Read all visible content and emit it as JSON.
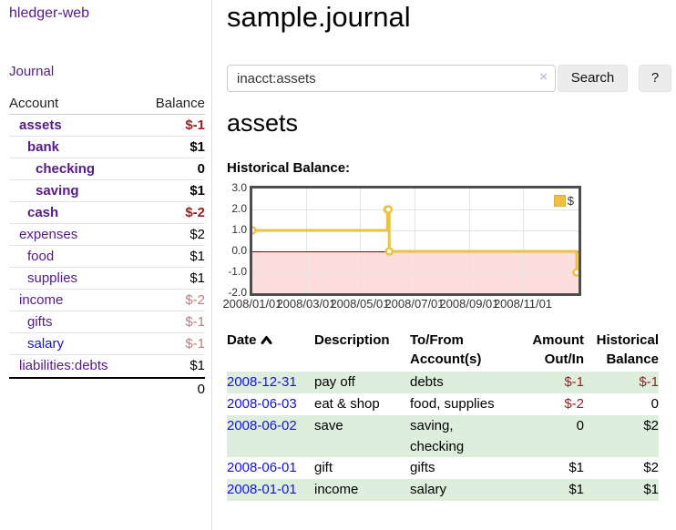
{
  "app": {
    "brand": "hledger-web"
  },
  "sidebar": {
    "journal_link": "Journal",
    "accounts": {
      "col_account": "Account",
      "col_balance": "Balance",
      "rows": [
        {
          "name": "assets",
          "balance": "$-1",
          "level": 0,
          "bold": true,
          "name_color": "purple",
          "balance_color": "negative"
        },
        {
          "name": "bank",
          "balance": "$1",
          "level": 1,
          "bold": true,
          "name_color": "purple",
          "balance_color": "normal"
        },
        {
          "name": "checking",
          "balance": "0",
          "level": 2,
          "bold": true,
          "name_color": "purple",
          "balance_color": "normal"
        },
        {
          "name": "saving",
          "balance": "$1",
          "level": 2,
          "bold": true,
          "name_color": "purple",
          "balance_color": "normal"
        },
        {
          "name": "cash",
          "balance": "$-2",
          "level": 1,
          "bold": true,
          "name_color": "purple",
          "balance_color": "negative"
        },
        {
          "name": "expenses",
          "balance": "$2",
          "level": 0,
          "bold": false,
          "name_color": "purple",
          "balance_color": "normal"
        },
        {
          "name": "food",
          "balance": "$1",
          "level": 1,
          "bold": false,
          "name_color": "purple",
          "balance_color": "normal"
        },
        {
          "name": "supplies",
          "balance": "$1",
          "level": 1,
          "bold": false,
          "name_color": "purple",
          "balance_color": "normal"
        },
        {
          "name": "income",
          "balance": "$-2",
          "level": 0,
          "bold": false,
          "name_color": "purple",
          "balance_color": "negative-muted"
        },
        {
          "name": "gifts",
          "balance": "$-1",
          "level": 1,
          "bold": false,
          "name_color": "purple",
          "balance_color": "negative-muted"
        },
        {
          "name": "salary",
          "balance": "$-1",
          "level": 1,
          "bold": false,
          "name_color": "blue",
          "balance_color": "negative-muted"
        },
        {
          "name": "liabilities:debts",
          "balance": "$1",
          "level": 0,
          "bold": false,
          "name_color": "purple",
          "balance_color": "normal"
        }
      ],
      "total": "0"
    }
  },
  "main": {
    "title": "sample.journal",
    "search": {
      "value": "inacct:assets",
      "clear_icon": "×",
      "button": "Search",
      "help_button": "?"
    },
    "account_heading": "assets",
    "chart_title": "Historical Balance:"
  },
  "chart_data": {
    "type": "line",
    "step": true,
    "title": "Historical Balance",
    "series": [
      {
        "name": "$",
        "color": "#edc240",
        "points": [
          {
            "date": "2008-01-01",
            "value": 1
          },
          {
            "date": "2008-06-01",
            "value": 2
          },
          {
            "date": "2008-06-02",
            "value": 2
          },
          {
            "date": "2008-06-03",
            "value": 0
          },
          {
            "date": "2008-12-31",
            "value": -1
          }
        ]
      }
    ],
    "ylim": [
      -2,
      3
    ],
    "yticks": [
      "3.0",
      "2.0",
      "1.0",
      "0.0",
      "-1.0",
      "-2.0"
    ],
    "xticks": [
      "2008/01/01",
      "2008/03/01",
      "2008/05/01",
      "2008/07/01",
      "2008/09/01",
      "2008/11/01"
    ],
    "legend": {
      "label": "$",
      "swatch_color": "#edc240",
      "position": "top-right"
    },
    "grid": true,
    "negative_region_color": "#fcdede",
    "zero_line_color": "#8b0000"
  },
  "register": {
    "headers": {
      "date": "Date",
      "sort_icon": "chevron-up",
      "description": "Description",
      "accounts": "To/From Account(s)",
      "amount": "Amount Out/In",
      "balance": "Historical Balance"
    },
    "rows": [
      {
        "date": "2008-12-31",
        "description": "pay off",
        "accounts": "debts",
        "amount": "$-1",
        "amount_color": "negative",
        "balance": "$-1",
        "balance_color": "negative",
        "highlight": true
      },
      {
        "date": "2008-06-03",
        "description": "eat & shop",
        "accounts": "food, supplies",
        "amount": "$-2",
        "amount_color": "negative",
        "balance": "0",
        "balance_color": "normal",
        "highlight": false
      },
      {
        "date": "2008-06-02",
        "description": "save",
        "accounts": "saving, checking",
        "amount": "0",
        "amount_color": "normal",
        "balance": "$2",
        "balance_color": "normal",
        "highlight": true
      },
      {
        "date": "2008-06-01",
        "description": "gift",
        "accounts": "gifts",
        "amount": "$1",
        "amount_color": "normal",
        "balance": "$2",
        "balance_color": "normal",
        "highlight": false
      },
      {
        "date": "2008-01-01",
        "description": "income",
        "accounts": "salary",
        "amount": "$1",
        "amount_color": "normal",
        "balance": "$1",
        "balance_color": "normal",
        "highlight": true
      }
    ]
  }
}
